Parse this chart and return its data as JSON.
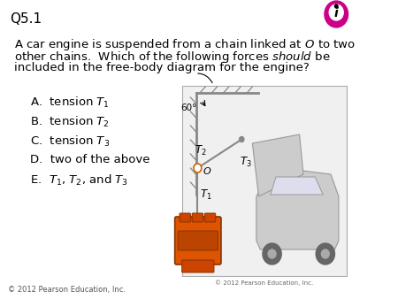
{
  "title": "Q5.1",
  "question_parts": [
    "A car engine is suspended from a chain linked at $O$ to two",
    "other chains.  Which of the following forces $should$ be",
    "included in the free-body diagram for the engine?"
  ],
  "choices": [
    "A.  tension $T_1$",
    "B.  tension $T_2$",
    "C.  tension $T_3$",
    "D.  two of the above",
    "E.  $T_1$, $T_2$, and $T_3$"
  ],
  "bg_color": "#ffffff",
  "text_color": "#000000",
  "title_fontsize": 11,
  "question_fontsize": 9.5,
  "choice_fontsize": 9.5,
  "footer": "© 2012 Pearson Education, Inc.",
  "footer_fontsize": 6,
  "diag_copyright": "© 2012 Pearson Education, Inc.",
  "diag_copyright_fontsize": 5,
  "icon_color": "#cc0088",
  "wall_color": "#888888",
  "chain_color": "#888888",
  "node_color": "#ffffff",
  "node_edge_color": "#cc6600",
  "engine_color": "#dd5500",
  "car_color": "#cccccc",
  "angle_label": "60°",
  "T1_label": "$T_1$",
  "T2_label": "$T_2$",
  "T3_label": "$T_3$",
  "O_label": "$O$"
}
